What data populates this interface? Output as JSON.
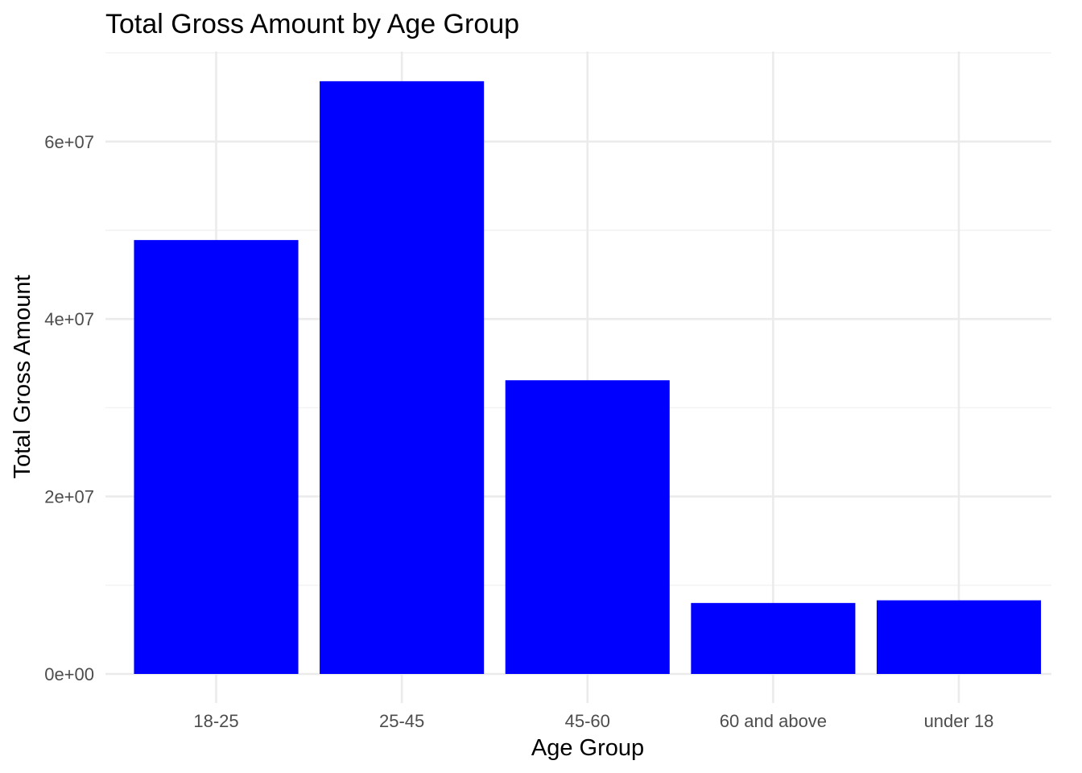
{
  "chart_data": {
    "type": "bar",
    "title": "Total Gross Amount by Age Group",
    "xlabel": "Age Group",
    "ylabel": "Total Gross Amount",
    "categories": [
      "18-25",
      "25-45",
      "45-60",
      "60 and above",
      "under 18"
    ],
    "values": [
      48900000,
      66800000,
      33100000,
      8000000,
      8300000
    ],
    "ylim": [
      0,
      70000000
    ],
    "y_ticks": [
      0,
      20000000,
      40000000,
      60000000
    ],
    "y_tick_labels": [
      "0e+00",
      "2e+07",
      "4e+07",
      "6e+07"
    ],
    "bar_color": "#0000ff",
    "grid": true,
    "legend": "none"
  }
}
